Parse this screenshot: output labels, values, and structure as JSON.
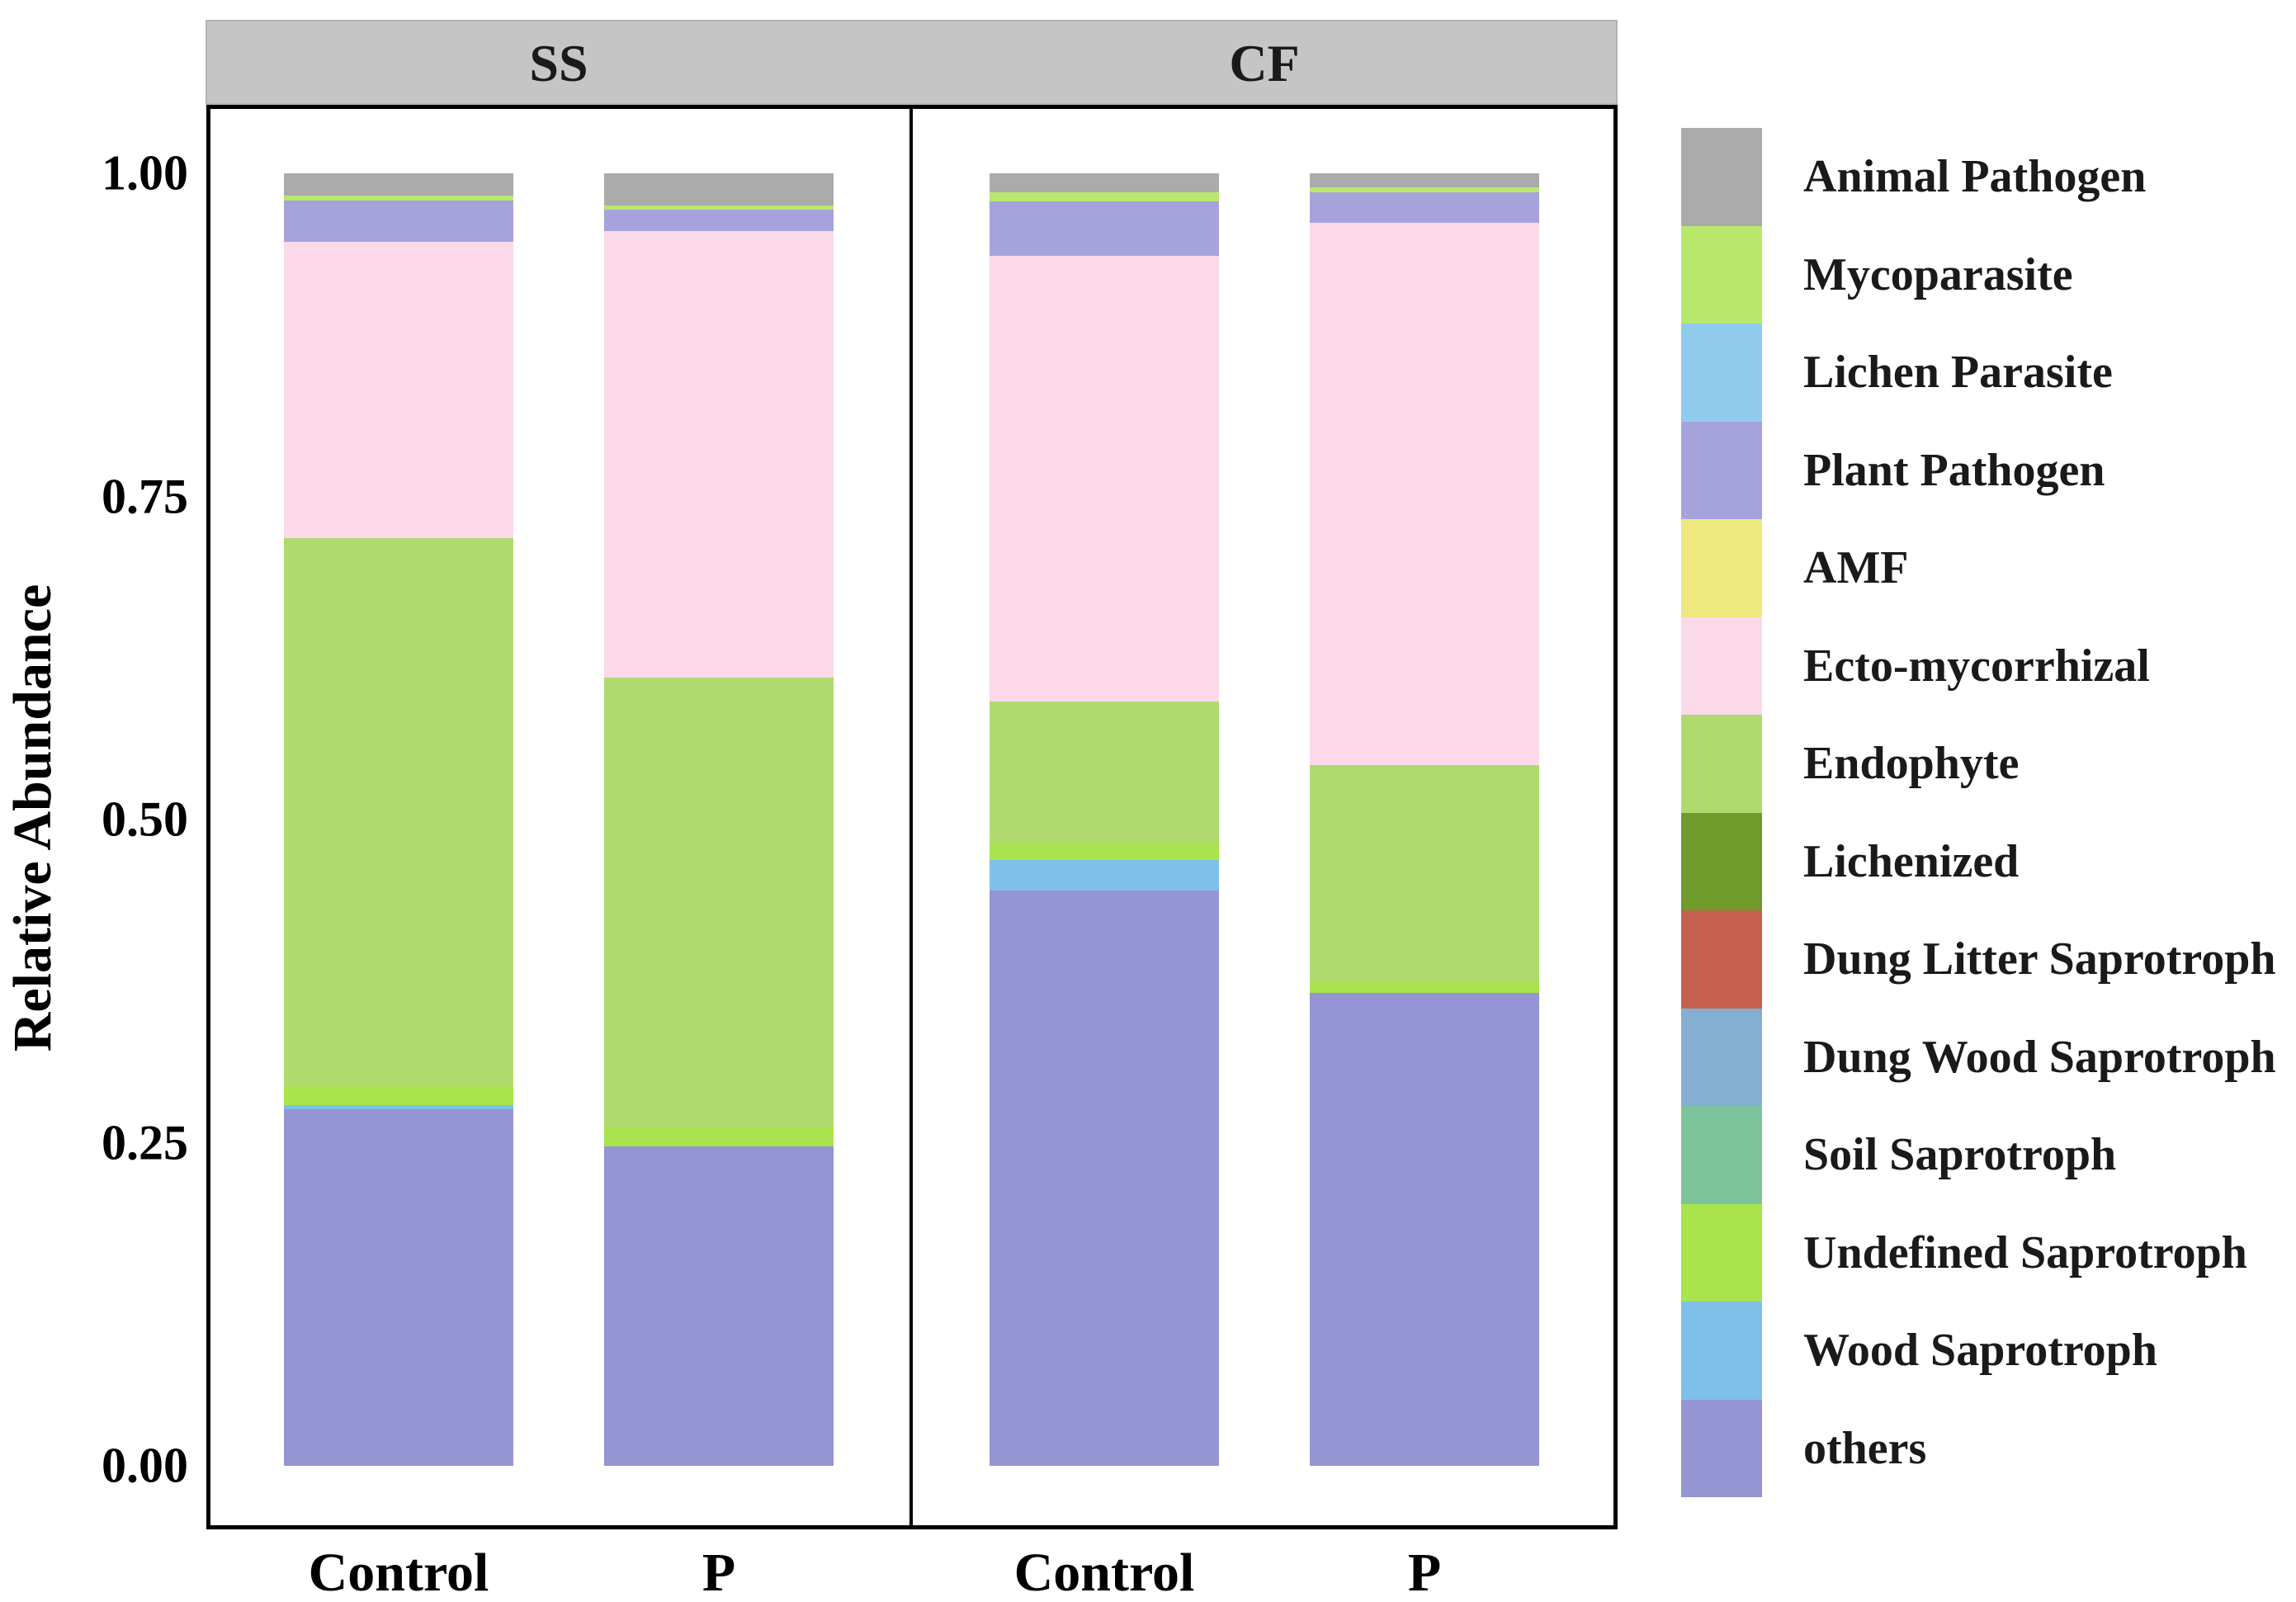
{
  "figure": {
    "y_axis_title": "Relative Abundance",
    "y_ticks": [
      "1.00",
      "0.75",
      "0.50",
      "0.25",
      "0.00"
    ],
    "facet_labels": [
      "SS",
      "CF"
    ],
    "x_labels": [
      "Control",
      "P"
    ]
  },
  "legend": {
    "items": [
      {
        "label": "Animal Pathogen",
        "color": "#ababab"
      },
      {
        "label": "Mycoparasite",
        "color": "#b8e86c"
      },
      {
        "label": "Lichen Parasite",
        "color": "#90cbee"
      },
      {
        "label": "Plant Pathogen",
        "color": "#a6a3dc"
      },
      {
        "label": "AMF",
        "color": "#eee87e"
      },
      {
        "label": "Ecto-mycorrhizal",
        "color": "#fbd9e9"
      },
      {
        "label": "Endophyte",
        "color": "#afdb6e"
      },
      {
        "label": "Lichenized",
        "color": "#6e9b2b"
      },
      {
        "label": "Dung Litter Saprotroph",
        "color": "#c5604f"
      },
      {
        "label": "Dung Wood Saprotroph",
        "color": "#84afd3"
      },
      {
        "label": "Soil Saprotroph",
        "color": "#7dc49b"
      },
      {
        "label": "Undefined Saprotroph",
        "color": "#a9e44c"
      },
      {
        "label": "Wood Saprotroph",
        "color": "#7ec0e8"
      },
      {
        "label": "others",
        "color": "#9495d2"
      }
    ]
  },
  "chart_data": {
    "type": "bar",
    "stacked": true,
    "normalized": true,
    "title": "",
    "xlabel": "",
    "ylabel": "Relative Abundance",
    "ylim": [
      0,
      1
    ],
    "y_tick_values": [
      1.0,
      0.75,
      0.5,
      0.25,
      0.0
    ],
    "grid": false,
    "legend_position": "right",
    "stack_order_top_to_bottom": [
      "Animal Pathogen",
      "Mycoparasite",
      "Lichen Parasite",
      "Plant Pathogen",
      "AMF",
      "Ecto-mycorrhizal",
      "Endophyte",
      "Lichenized",
      "Dung Litter Saprotroph",
      "Dung Wood Saprotroph",
      "Soil Saprotroph",
      "Undefined Saprotroph",
      "Wood Saprotroph",
      "others"
    ],
    "colors": {
      "Animal Pathogen": "#ababab",
      "Mycoparasite": "#b8e86c",
      "Lichen Parasite": "#90cbee",
      "Plant Pathogen": "#a6a3dc",
      "AMF": "#eee87e",
      "Ecto-mycorrhizal": "#fbd9e9",
      "Endophyte": "#afdb6e",
      "Lichenized": "#6e9b2b",
      "Dung Litter Saprotroph": "#c5604f",
      "Dung Wood Saprotroph": "#84afd3",
      "Soil Saprotroph": "#7dc49b",
      "Undefined Saprotroph": "#a9e44c",
      "Wood Saprotroph": "#7ec0e8",
      "others": "#9495d2"
    },
    "facets": [
      {
        "label": "SS",
        "bars": [
          {
            "x": "Control",
            "segments": [
              {
                "category": "Animal Pathogen",
                "value": 0.017
              },
              {
                "category": "Mycoparasite",
                "value": 0.004
              },
              {
                "category": "Plant Pathogen",
                "value": 0.032
              },
              {
                "category": "Ecto-mycorrhizal",
                "value": 0.229
              },
              {
                "category": "Endophyte",
                "value": 0.424
              },
              {
                "category": "Undefined Saprotroph",
                "value": 0.015
              },
              {
                "category": "Wood Saprotroph",
                "value": 0.003
              },
              {
                "category": "others",
                "value": 0.276
              }
            ]
          },
          {
            "x": "P",
            "segments": [
              {
                "category": "Animal Pathogen",
                "value": 0.025
              },
              {
                "category": "Mycoparasite",
                "value": 0.003
              },
              {
                "category": "Plant Pathogen",
                "value": 0.017
              },
              {
                "category": "Ecto-mycorrhizal",
                "value": 0.345
              },
              {
                "category": "Endophyte",
                "value": 0.348
              },
              {
                "category": "Undefined Saprotroph",
                "value": 0.015
              },
              {
                "category": "others",
                "value": 0.247
              }
            ]
          }
        ]
      },
      {
        "label": "CF",
        "bars": [
          {
            "x": "Control",
            "segments": [
              {
                "category": "Animal Pathogen",
                "value": 0.015
              },
              {
                "category": "Mycoparasite",
                "value": 0.007
              },
              {
                "category": "Plant Pathogen",
                "value": 0.042
              },
              {
                "category": "Ecto-mycorrhizal",
                "value": 0.345
              },
              {
                "category": "Endophyte",
                "value": 0.11
              },
              {
                "category": "Undefined Saprotroph",
                "value": 0.012
              },
              {
                "category": "Wood Saprotroph",
                "value": 0.024
              },
              {
                "category": "others",
                "value": 0.445
              }
            ]
          },
          {
            "x": "P",
            "segments": [
              {
                "category": "Animal Pathogen",
                "value": 0.011
              },
              {
                "category": "Mycoparasite",
                "value": 0.004
              },
              {
                "category": "Plant Pathogen",
                "value": 0.023
              },
              {
                "category": "Ecto-mycorrhizal",
                "value": 0.42
              },
              {
                "category": "Endophyte",
                "value": 0.168
              },
              {
                "category": "Undefined Saprotroph",
                "value": 0.008
              },
              {
                "category": "others",
                "value": 0.366
              }
            ]
          }
        ]
      }
    ]
  }
}
